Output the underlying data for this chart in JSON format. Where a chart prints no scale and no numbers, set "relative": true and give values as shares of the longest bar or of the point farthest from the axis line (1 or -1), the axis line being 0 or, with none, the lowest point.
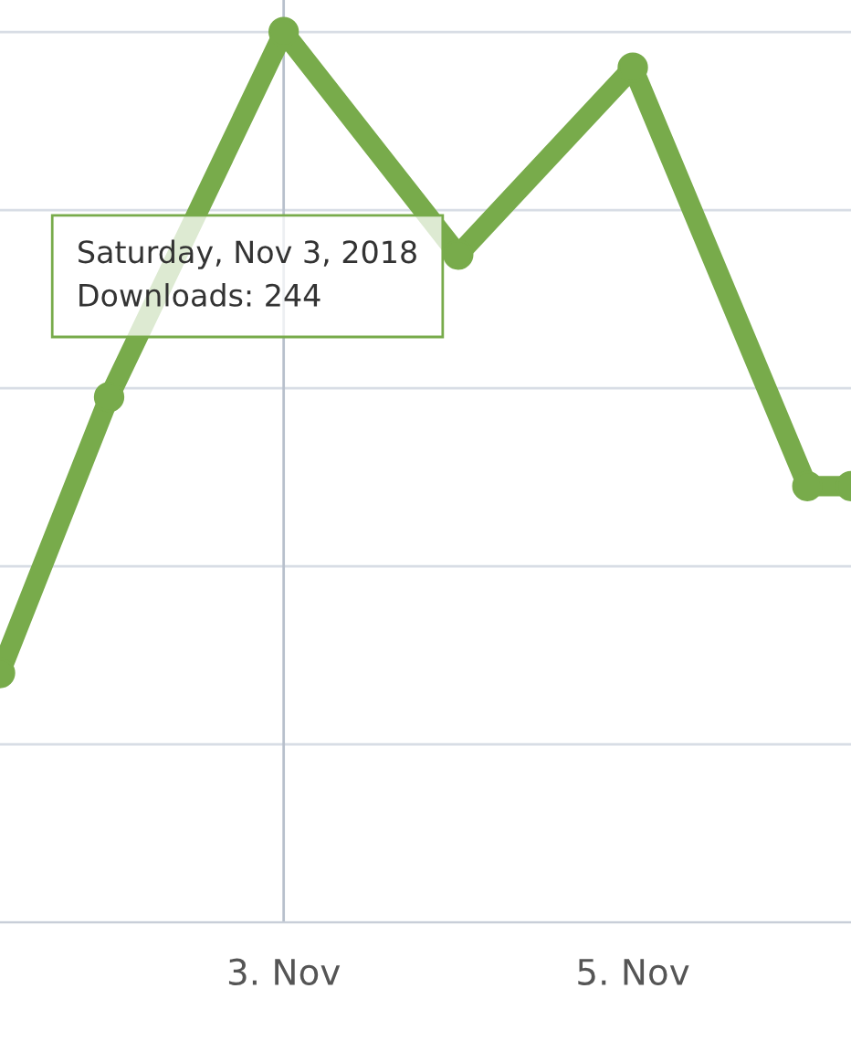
{
  "chart_data": {
    "type": "line",
    "relative": true,
    "x": [
      "2018-11-01T09:00",
      "2018-11-02",
      "2018-11-03",
      "2018-11-04",
      "2018-11-05",
      "2018-11-06",
      "2018-11-06T06:00"
    ],
    "series": [
      {
        "color": "#78ab4b",
        "values": [
          0.28,
          0.59,
          1,
          0.75,
          0.96,
          0.49,
          0.49
        ]
      }
    ],
    "xlim": [
      "2018-11-01T09:00",
      "2018-11-06T06:00"
    ],
    "xticks": [
      {
        "value": "2018-11-03",
        "label": "3. Nov"
      },
      {
        "value": "2018-11-05",
        "label": "5. Nov"
      }
    ],
    "ref_lines": [
      {
        "axis": "x",
        "value": "2018-11-03",
        "color": "#b8c0cc"
      }
    ],
    "annotations": [
      "Saturday, Nov 3, 2018\nDownloads: 244"
    ],
    "grid": "y",
    "marker": "circle",
    "line_style": "solid",
    "legend": false
  }
}
